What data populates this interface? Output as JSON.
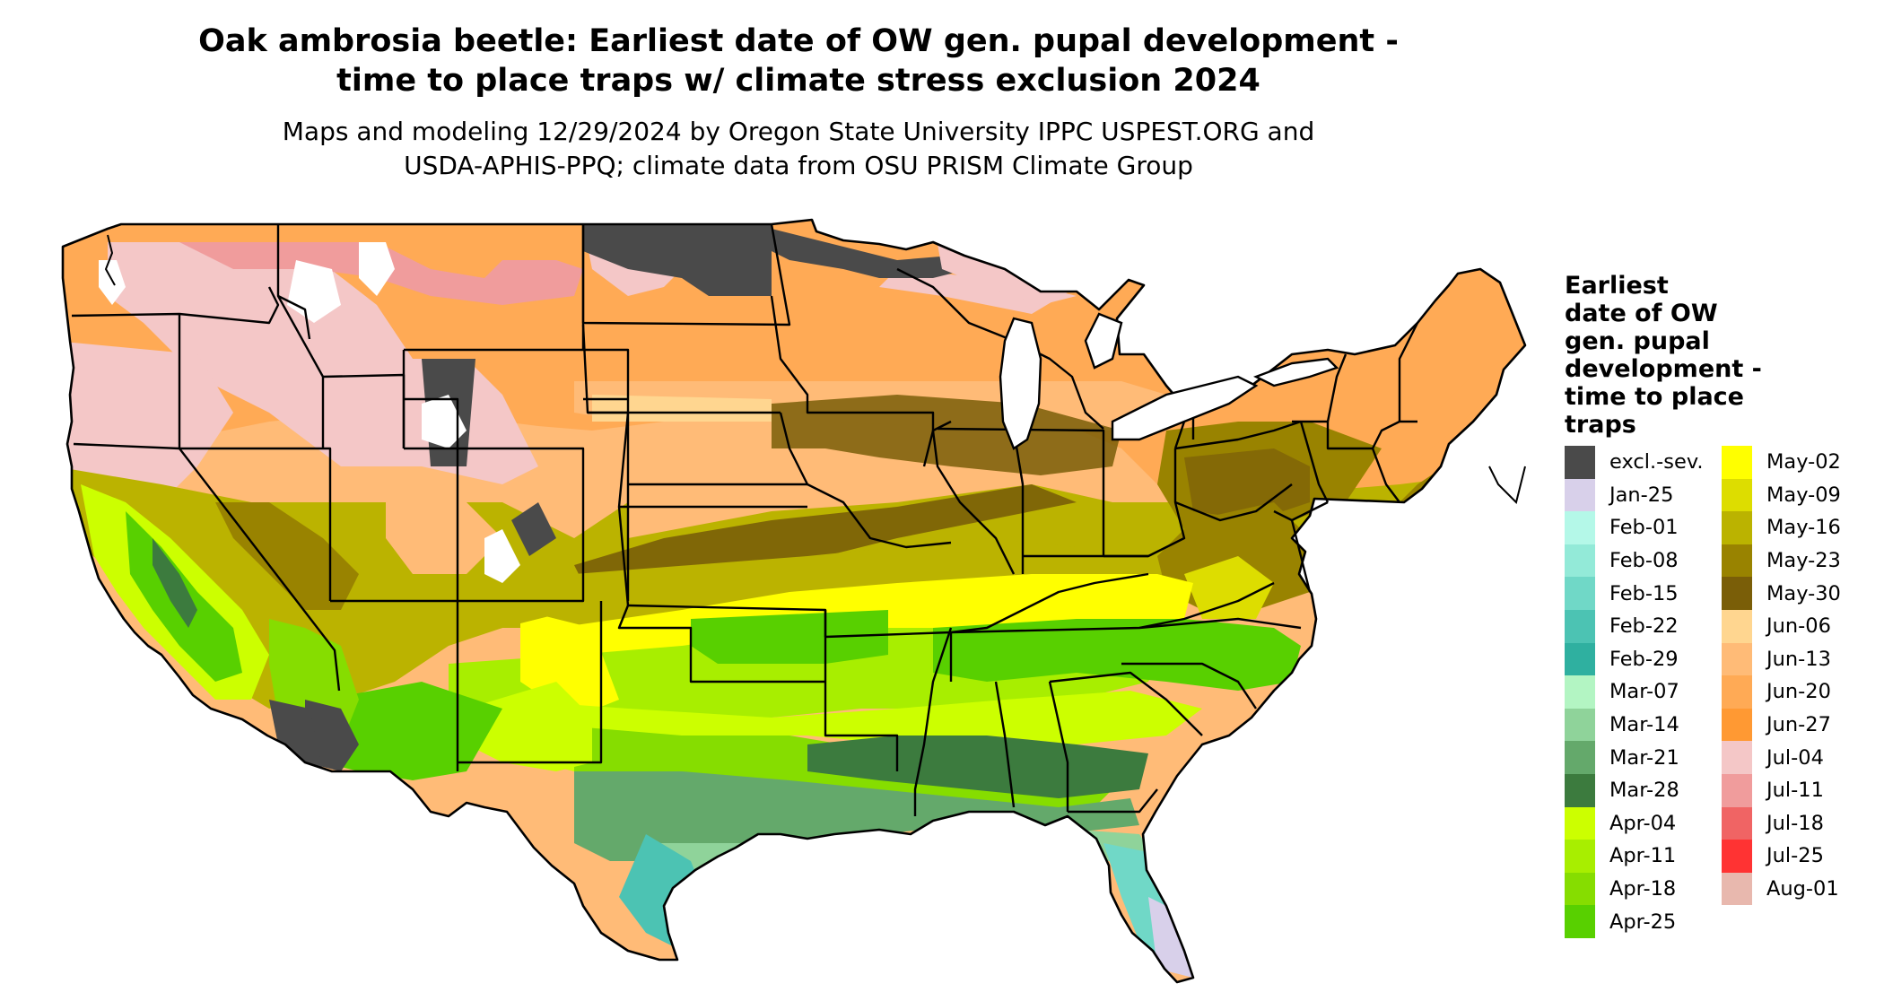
{
  "title": {
    "line1": "Oak ambrosia beetle: Earliest date of OW gen. pupal development -",
    "line2": "time to place traps w/ climate stress exclusion 2024"
  },
  "subtitle": {
    "line1": "Maps and modeling 12/29/2024 by Oregon State University IPPC USPEST.ORG and",
    "line2": "USDA-APHIS-PPQ; climate data from OSU PRISM Climate Group"
  },
  "map": {
    "region": "Contiguous United States",
    "colors": {
      "excl": "#4a4a4a",
      "jan25": "#d8d0ea",
      "feb22": "#4cc3b3",
      "mar07": "#b3f5c3",
      "mar14": "#8fd39a",
      "mar21": "#64a96b",
      "mar28": "#3c7b3e",
      "apr04": "#ccff00",
      "apr11": "#a8ee00",
      "apr18": "#86dd00",
      "apr25": "#58d000",
      "may02": "#ffff00",
      "may09": "#dddd00",
      "may16": "#bbb300",
      "may23": "#998300",
      "may30": "#7a5e08",
      "jun06": "#ffd690",
      "jun13": "#ffbb77",
      "jun20": "#ffaa55",
      "jun27": "#ff9933",
      "jul04": "#f4c7c7",
      "jul11": "#f09c9c",
      "jul18": "#f06464",
      "white": "#ffffff",
      "border": "#000000"
    }
  },
  "legend": {
    "title_lines": [
      "Earliest",
      "date of OW",
      "gen. pupal",
      "development -",
      "time to place",
      "traps"
    ],
    "col1": [
      {
        "label": "excl.-sev.",
        "color": "#4a4a4a"
      },
      {
        "label": "Jan-25",
        "color": "#d8d0ea"
      },
      {
        "label": "Feb-01",
        "color": "#b4f8e8"
      },
      {
        "label": "Feb-08",
        "color": "#93ead8"
      },
      {
        "label": "Feb-15",
        "color": "#70d8c7"
      },
      {
        "label": "Feb-22",
        "color": "#4cc3b3"
      },
      {
        "label": "Feb-29",
        "color": "#2fb0a0"
      },
      {
        "label": "Mar-07",
        "color": "#b3f5c3"
      },
      {
        "label": "Mar-14",
        "color": "#8fd39a"
      },
      {
        "label": "Mar-21",
        "color": "#64a96b"
      },
      {
        "label": "Mar-28",
        "color": "#3c7b3e"
      },
      {
        "label": "Apr-04",
        "color": "#ccff00"
      },
      {
        "label": "Apr-11",
        "color": "#a8ee00"
      },
      {
        "label": "Apr-18",
        "color": "#86dd00"
      },
      {
        "label": "Apr-25",
        "color": "#58d000"
      }
    ],
    "col2": [
      {
        "label": "May-02",
        "color": "#ffff00"
      },
      {
        "label": "May-09",
        "color": "#dddd00"
      },
      {
        "label": "May-16",
        "color": "#bbb300"
      },
      {
        "label": "May-23",
        "color": "#998300"
      },
      {
        "label": "May-30",
        "color": "#7a5e08"
      },
      {
        "label": "Jun-06",
        "color": "#ffd690"
      },
      {
        "label": "Jun-13",
        "color": "#ffbb77"
      },
      {
        "label": "Jun-20",
        "color": "#ffaa55"
      },
      {
        "label": "Jun-27",
        "color": "#ff9933"
      },
      {
        "label": "Jul-04",
        "color": "#f4c7c7"
      },
      {
        "label": "Jul-11",
        "color": "#f09c9c"
      },
      {
        "label": "Jul-18",
        "color": "#f06464"
      },
      {
        "label": "Jul-25",
        "color": "#ff3333"
      },
      {
        "label": "Aug-01",
        "color": "#e8b8ae"
      }
    ]
  }
}
